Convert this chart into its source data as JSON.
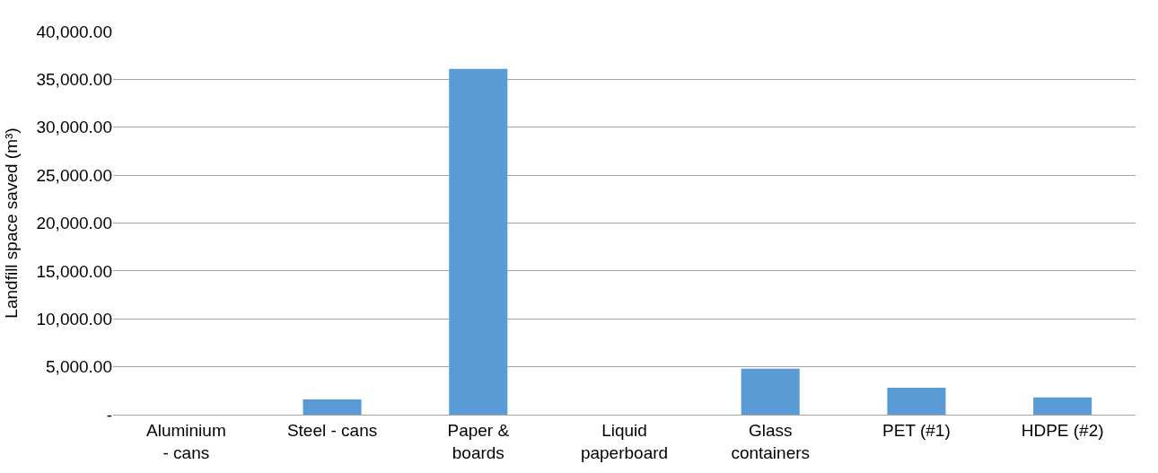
{
  "chart_data": {
    "type": "bar",
    "ylabel": "Landfill space saved (m³)",
    "categories": [
      "Aluminium - cans",
      "Steel - cans",
      "Paper & boards",
      "Liquid paperboard",
      "Glass containers",
      "PET (#1)",
      "HDPE (#2)"
    ],
    "values": [
      0,
      1600,
      36100,
      0,
      4800,
      2800,
      1800
    ],
    "color": "#5b9bd5",
    "ylim": [
      0,
      40000
    ],
    "yticks": [
      {
        "value": 0,
        "label": "-"
      },
      {
        "value": 5000,
        "label": "5,000.00"
      },
      {
        "value": 10000,
        "label": "10,000.00"
      },
      {
        "value": 15000,
        "label": "15,000.00"
      },
      {
        "value": 20000,
        "label": "20,000.00"
      },
      {
        "value": 25000,
        "label": "25,000.00"
      },
      {
        "value": 30000,
        "label": "30,000.00"
      },
      {
        "value": 35000,
        "label": "35,000.00"
      },
      {
        "value": 40000,
        "label": "40,000.00"
      }
    ],
    "grid": "y"
  }
}
